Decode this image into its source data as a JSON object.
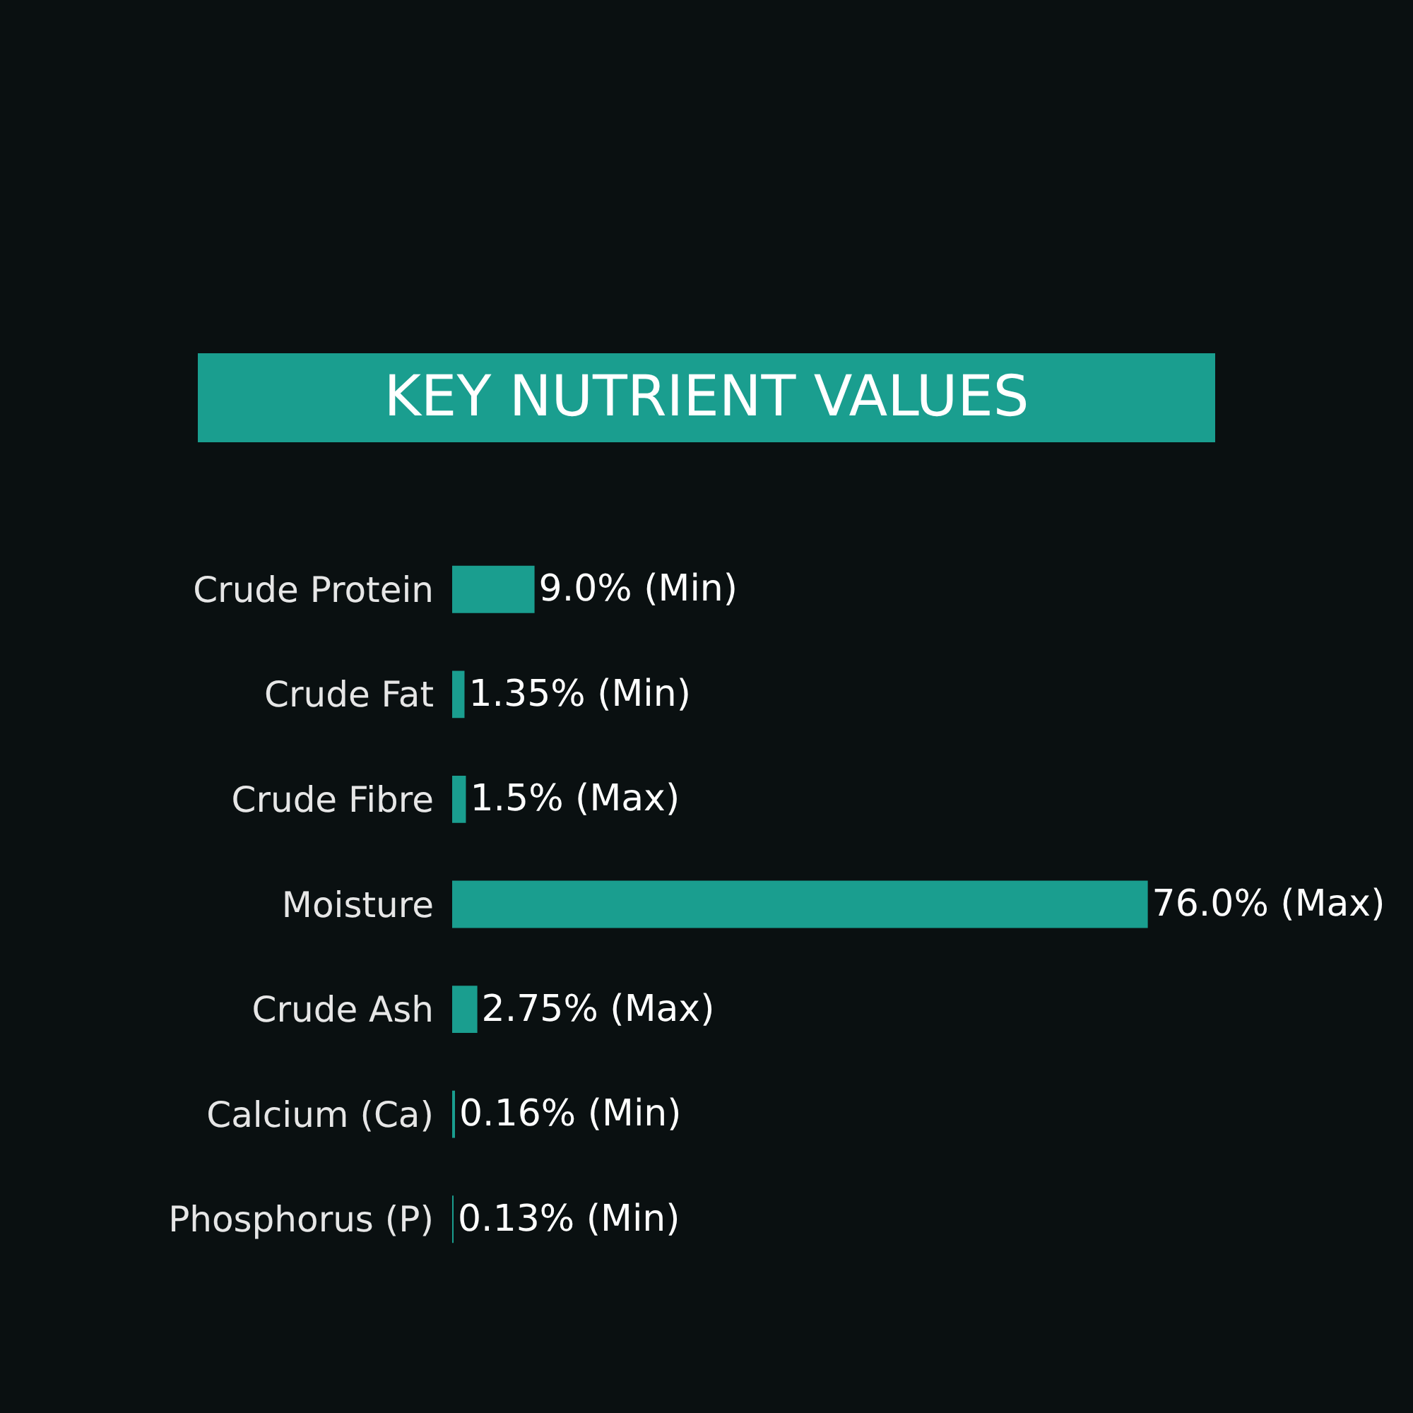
{
  "chart_data": {
    "type": "bar",
    "orientation": "horizontal",
    "title": "KEY NUTRIENT VALUES",
    "categories": [
      "Crude Protein",
      "Crude Fat",
      "Crude Fibre",
      "Moisture",
      "Crude Ash",
      "Calcium (Ca)",
      "Phosphorus (P)"
    ],
    "values": [
      9.0,
      1.35,
      1.5,
      76.0,
      2.75,
      0.16,
      0.13
    ],
    "value_labels": [
      "9.0% (Min)",
      "1.35% (Min)",
      "1.5% (Max)",
      "76.0% (Max)",
      "2.75% (Max)",
      "0.16% (Min)",
      "0.13% (Min)"
    ],
    "color": "#1a9e8f"
  }
}
